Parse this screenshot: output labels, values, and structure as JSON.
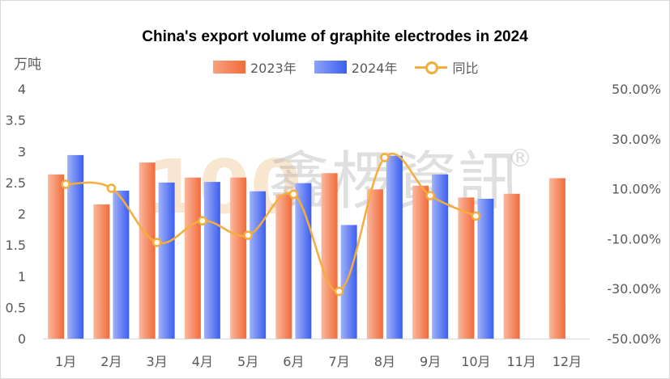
{
  "chart_data": {
    "type": "bar",
    "title": "China's export volume of graphite electrodes in 2024",
    "ylabel": "万吨",
    "categories": [
      "1月",
      "2月",
      "3月",
      "4月",
      "5月",
      "6月",
      "7月",
      "8月",
      "9月",
      "10月",
      "11月",
      "12月"
    ],
    "ylim": [
      0,
      4
    ],
    "yticks": [
      "0",
      "0.5",
      "1",
      "1.5",
      "2",
      "2.5",
      "3",
      "3.5",
      "4"
    ],
    "y2lim": [
      -0.5,
      0.5
    ],
    "y2ticks": [
      "-50.00%",
      "-30.00%",
      "-10.00%",
      "10.00%",
      "30.00%",
      "50.00%"
    ],
    "series": [
      {
        "name": "2023年",
        "type": "bar",
        "color": "#f26b3a",
        "values": [
          2.63,
          2.15,
          2.82,
          2.58,
          2.58,
          2.31,
          2.65,
          2.39,
          2.45,
          2.26,
          2.32,
          2.57
        ]
      },
      {
        "name": "2024年",
        "type": "bar",
        "color": "#3c5ef0",
        "values": [
          2.94,
          2.37,
          2.5,
          2.51,
          2.36,
          2.49,
          1.82,
          2.93,
          2.63,
          2.24,
          null,
          null
        ]
      },
      {
        "name": "同比",
        "type": "line",
        "axis": "secondary",
        "color": "#f5ad3c",
        "values": [
          0.118,
          0.102,
          -0.115,
          -0.028,
          -0.086,
          0.078,
          -0.311,
          0.225,
          0.073,
          -0.009,
          null,
          null
        ]
      }
    ],
    "legend": "top-center",
    "grid": false
  },
  "watermark": "100 鑫椤資訊 ®"
}
